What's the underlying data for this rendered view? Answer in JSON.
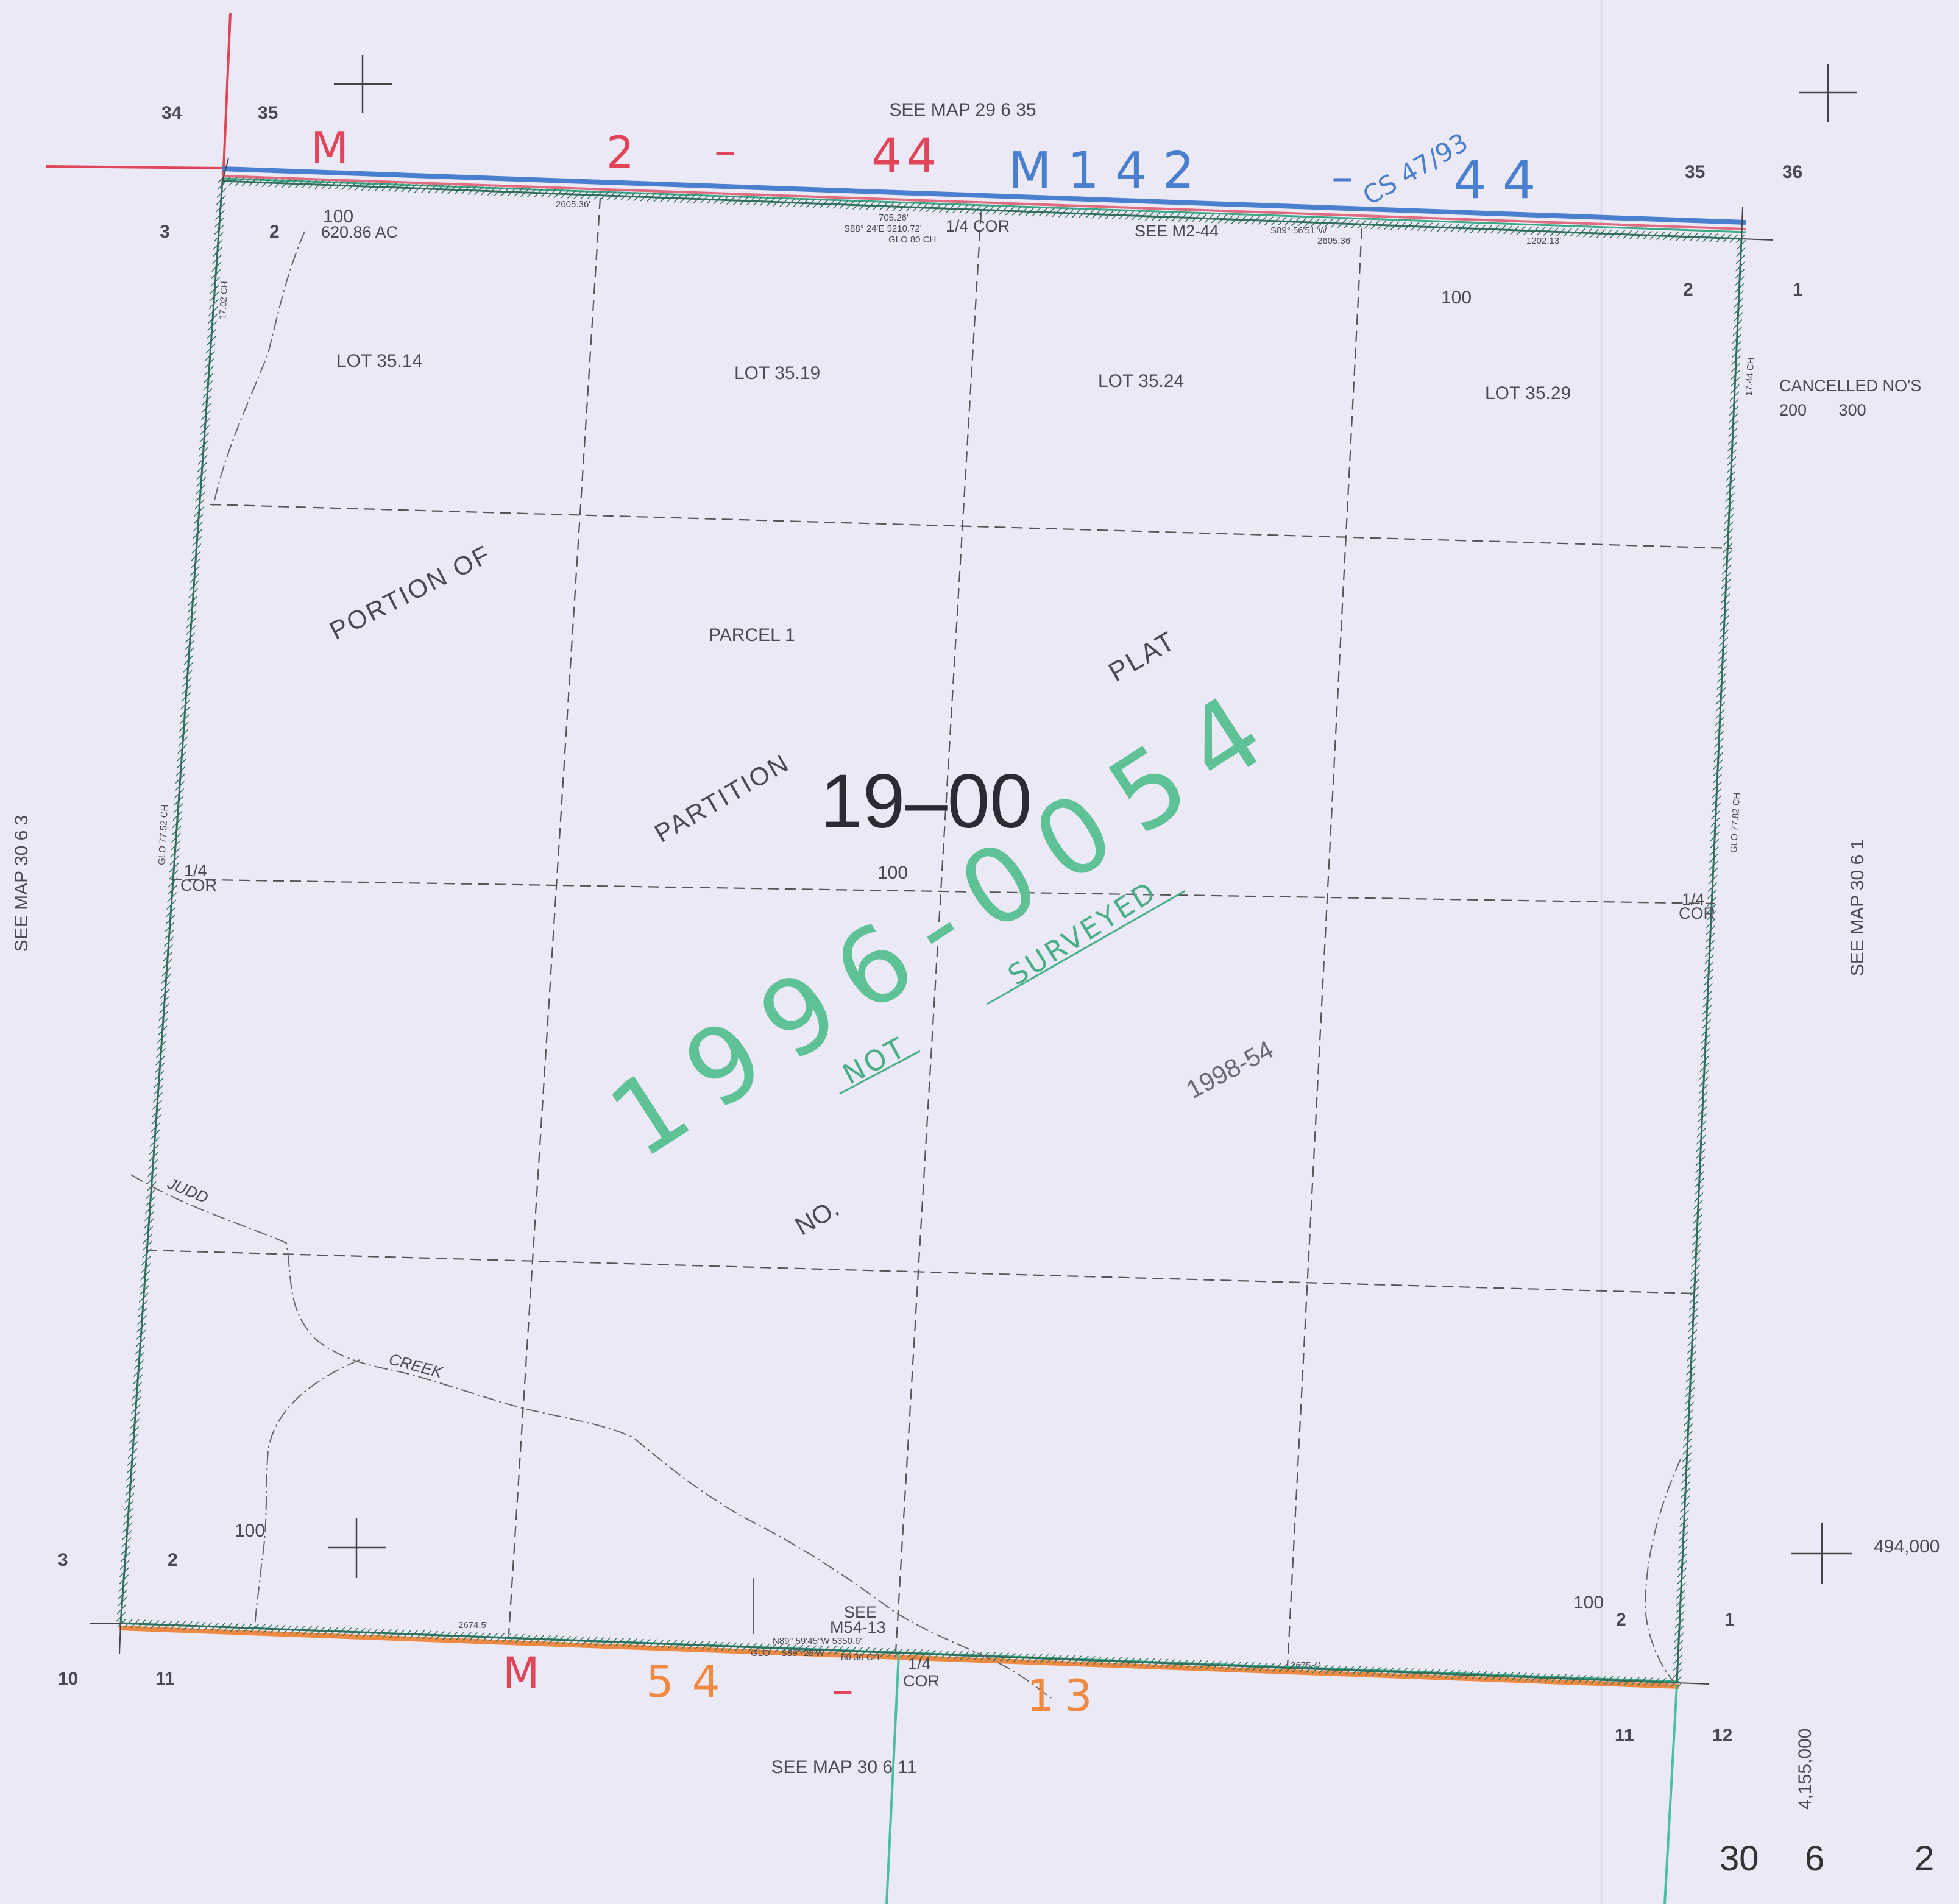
{
  "margins": {
    "top": "SEE MAP 29 6 35",
    "bottom": "SEE MAP 30 6 11",
    "left": "SEE MAP 30 6 3",
    "right": "SEE MAP 30 6 1"
  },
  "section_numbers": {
    "nw_34": "34",
    "nw_35": "35",
    "nw_3": "3",
    "nw_2": "2",
    "ne_35": "35",
    "ne_36": "36",
    "ne_2": "2",
    "ne_1": "1",
    "sw_3": "3",
    "sw_2": "2",
    "sw_10": "10",
    "sw_11": "11",
    "se_2": "2",
    "se_1": "1",
    "se_11": "11",
    "se_12": "12"
  },
  "tax_lots": {
    "nw_100": "100",
    "acreage": "620.86 AC",
    "ne_100": "100",
    "center_100": "100",
    "sw_100": "100",
    "se_100": "100"
  },
  "lots": [
    "LOT   35.14",
    "LOT   35.19",
    "LOT   35.24",
    "LOT   35.29"
  ],
  "parcel": "PARCEL  1",
  "map_number": "19–00",
  "partition_text": {
    "portion_of": "PORTION OF",
    "partition": "PARTITION",
    "plat": "PLAT",
    "no": "NO."
  },
  "pencil_note": "1998-54",
  "stamps": {
    "year_number": "1996-0054",
    "not": "NOT",
    "surveyed": "SURVEYED"
  },
  "handwritten": {
    "top_m": "M",
    "top_2": "2",
    "top_dash": "–",
    "top_44": "44",
    "top_m142": "M142",
    "top_dash2": "–",
    "top_cs": "CS 47/93",
    "top_44b": "44",
    "bottom_m": "M",
    "bottom_54": "54",
    "bottom_dash": "–",
    "bottom_13": "13"
  },
  "survey_refs": {
    "see_m2_44": "SEE  M2-44",
    "see": "SEE",
    "m54_13": "M54-13",
    "quarter_cor": "1/4",
    "cor": "COR",
    "top_quarter": "1/4  COR",
    "n_meas_1": "2605.36'",
    "n_meas_2": "705.26'",
    "n_bearing": "S88° 24'E   5210.72'",
    "n_glo": "GLO  80  CH",
    "n_bearing2": "S89° 56'51\"W",
    "n_meas_3": "2605.36'",
    "n_meas_4": "1202.13'",
    "s_meas_1": "2674.5'",
    "s_bearing": "N89° 59'45\"W   5350.6'",
    "s_bearing2": "S89° 28'W",
    "s_glo": "GLO",
    "s_ch": "80.30  CH",
    "s_meas_2": "2675.4'",
    "w_ch_1": "17.02  CH",
    "w_ch_2": "GLO  77.52  CH",
    "e_ch_1": "17.44  CH",
    "e_ch_2": "GLO  77.82  CH"
  },
  "cancelled": {
    "title": "CANCELLED  NO'S",
    "nums": "200       300"
  },
  "creek": {
    "judd": "JUDD",
    "creek": "CREEK"
  },
  "coords": {
    "x": "494,000",
    "y": "4,155,000"
  },
  "map_id": {
    "township": "30",
    "range": "6",
    "section": "2"
  }
}
